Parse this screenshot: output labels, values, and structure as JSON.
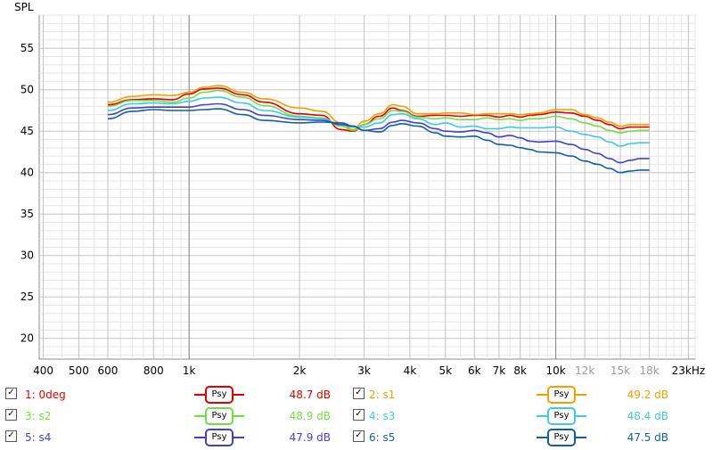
{
  "chart_data": {
    "type": "line",
    "ylabel": "SPL",
    "ylim": [
      17.5,
      59
    ],
    "xlim": [
      390,
      24000
    ],
    "x_scale": "log",
    "grid": true,
    "y_ticks": [
      20,
      25,
      30,
      35,
      40,
      45,
      50,
      55
    ],
    "x_ticks": [
      {
        "v": 400,
        "label": "400",
        "color": "#000000"
      },
      {
        "v": 500,
        "label": "500",
        "color": "#000000"
      },
      {
        "v": 600,
        "label": "600",
        "color": "#000000"
      },
      {
        "v": 800,
        "label": "800",
        "color": "#000000"
      },
      {
        "v": 1000,
        "label": "1k",
        "color": "#000000"
      },
      {
        "v": 2000,
        "label": "2k",
        "color": "#000000"
      },
      {
        "v": 3000,
        "label": "3k",
        "color": "#000000"
      },
      {
        "v": 4000,
        "label": "4k",
        "color": "#000000"
      },
      {
        "v": 5000,
        "label": "5k",
        "color": "#000000"
      },
      {
        "v": 6000,
        "label": "6k",
        "color": "#000000"
      },
      {
        "v": 7000,
        "label": "7k",
        "color": "#000000"
      },
      {
        "v": 8000,
        "label": "8k",
        "color": "#000000"
      },
      {
        "v": 10000,
        "label": "10k",
        "color": "#000000"
      },
      {
        "v": 12000,
        "label": "12k",
        "color": "#999999"
      },
      {
        "v": 15000,
        "label": "15k",
        "color": "#999999"
      },
      {
        "v": 18000,
        "label": "18k",
        "color": "#999999"
      },
      {
        "v": 23000,
        "label": "23kHz",
        "color": "#000000"
      }
    ],
    "series": [
      {
        "name": "1: 0deg",
        "color": "#e00000",
        "x": [
          600,
          700,
          800,
          900,
          1000,
          1100,
          1200,
          1400,
          1600,
          2000,
          2300,
          2600,
          2800,
          3000,
          3300,
          3600,
          3800,
          4200,
          4700,
          5000,
          5500,
          6000,
          6500,
          7000,
          7500,
          8000,
          8500,
          9000,
          10000,
          11000,
          12000,
          13000,
          14000,
          15000,
          16000,
          17000,
          18000
        ],
        "values": [
          48.2,
          48.8,
          48.9,
          48.8,
          49.5,
          50.1,
          50.2,
          49.4,
          48.5,
          47.1,
          46.9,
          45.2,
          45.0,
          45.8,
          46.8,
          47.8,
          47.5,
          46.8,
          46.9,
          46.9,
          46.8,
          46.9,
          46.9,
          46.7,
          46.9,
          46.7,
          46.9,
          47.0,
          47.3,
          47.2,
          46.8,
          46.3,
          45.8,
          45.3,
          45.5,
          45.5,
          45.5
        ]
      },
      {
        "name": "2: s1",
        "color": "#f0a000",
        "x": [
          600,
          700,
          800,
          900,
          1000,
          1100,
          1200,
          1400,
          1600,
          2000,
          2300,
          2600,
          2800,
          3000,
          3300,
          3600,
          3800,
          4200,
          4700,
          5000,
          5500,
          6000,
          6500,
          7000,
          7500,
          8000,
          8500,
          9000,
          10000,
          11000,
          12000,
          13000,
          14000,
          15000,
          16000,
          17000,
          18000
        ],
        "values": [
          48.5,
          49.2,
          49.4,
          49.3,
          49.7,
          50.3,
          50.5,
          49.7,
          48.9,
          47.8,
          47.4,
          46.0,
          45.2,
          46.2,
          47.1,
          48.2,
          48.0,
          47.1,
          47.1,
          47.2,
          47.2,
          47.0,
          47.1,
          47.1,
          47.1,
          47.0,
          47.1,
          47.2,
          47.6,
          47.6,
          47.0,
          46.6,
          46.1,
          45.6,
          45.8,
          45.8,
          45.8
        ]
      },
      {
        "name": "3: s2",
        "color": "#70e040",
        "x": [
          600,
          700,
          800,
          900,
          1000,
          1100,
          1200,
          1400,
          1600,
          2000,
          2300,
          2600,
          2800,
          3000,
          3300,
          3600,
          3800,
          4200,
          4700,
          5000,
          5500,
          6000,
          6500,
          7000,
          7500,
          8000,
          8500,
          9000,
          10000,
          11000,
          12000,
          13000,
          14000,
          15000,
          16000,
          17000,
          18000
        ],
        "values": [
          48.0,
          48.7,
          48.7,
          48.5,
          49.0,
          49.7,
          49.9,
          49.1,
          48.1,
          46.8,
          46.6,
          45.6,
          45.1,
          45.8,
          46.5,
          47.5,
          47.4,
          46.7,
          46.5,
          46.6,
          46.4,
          46.4,
          46.6,
          46.4,
          46.5,
          46.3,
          46.5,
          46.5,
          46.8,
          46.5,
          46.0,
          45.6,
          45.1,
          44.8,
          45.0,
          45.1,
          45.1
        ]
      },
      {
        "name": "4: s3",
        "color": "#40c8e8",
        "x": [
          600,
          700,
          800,
          900,
          1000,
          1100,
          1200,
          1400,
          1600,
          2000,
          2300,
          2600,
          2800,
          3000,
          3300,
          3600,
          3800,
          4200,
          4700,
          5000,
          5500,
          6000,
          6500,
          7000,
          7500,
          8000,
          8500,
          9000,
          10000,
          11000,
          12000,
          13000,
          14000,
          15000,
          16000,
          17000,
          18000
        ],
        "values": [
          47.5,
          48.3,
          48.4,
          48.3,
          48.6,
          49.0,
          49.1,
          48.4,
          47.5,
          46.7,
          46.5,
          45.8,
          45.5,
          45.5,
          46.0,
          47.0,
          47.1,
          46.5,
          45.8,
          46.0,
          45.5,
          45.6,
          45.3,
          45.3,
          45.5,
          45.4,
          45.4,
          45.4,
          45.5,
          45.0,
          44.6,
          44.3,
          43.7,
          43.2,
          43.5,
          43.6,
          43.6
        ]
      },
      {
        "name": "5: s4",
        "color": "#4040d0",
        "x": [
          600,
          700,
          800,
          900,
          1000,
          1100,
          1200,
          1400,
          1600,
          2000,
          2300,
          2600,
          2800,
          3000,
          3300,
          3600,
          3800,
          4200,
          4700,
          5000,
          5500,
          6000,
          6500,
          7000,
          7500,
          8000,
          8500,
          9000,
          10000,
          11000,
          12000,
          13000,
          14000,
          15000,
          16000,
          17000,
          18000
        ],
        "values": [
          47.0,
          47.8,
          47.9,
          47.9,
          47.9,
          48.2,
          48.3,
          47.6,
          46.9,
          46.4,
          46.3,
          45.8,
          45.6,
          45.1,
          45.3,
          46.1,
          46.3,
          46.0,
          45.3,
          45.0,
          44.9,
          45.1,
          44.8,
          44.3,
          44.5,
          44.2,
          43.8,
          43.7,
          43.8,
          43.4,
          42.8,
          42.3,
          41.7,
          41.2,
          41.5,
          41.7,
          41.7
        ]
      },
      {
        "name": "6: s5",
        "color": "#1060a0",
        "x": [
          600,
          700,
          800,
          900,
          1000,
          1100,
          1200,
          1400,
          1600,
          2000,
          2300,
          2600,
          2800,
          3000,
          3300,
          3600,
          3800,
          4200,
          4700,
          5000,
          5500,
          6000,
          6500,
          7000,
          7500,
          8000,
          8500,
          9000,
          10000,
          11000,
          12000,
          13000,
          14000,
          15000,
          16000,
          17000,
          18000
        ],
        "values": [
          46.5,
          47.4,
          47.6,
          47.5,
          47.5,
          47.6,
          47.7,
          47.0,
          46.3,
          46.0,
          46.1,
          46.0,
          45.6,
          45.1,
          44.9,
          45.7,
          45.9,
          45.6,
          44.8,
          44.4,
          44.3,
          44.4,
          43.9,
          43.4,
          43.3,
          43.0,
          42.8,
          42.5,
          42.4,
          42.0,
          41.4,
          41.0,
          40.5,
          40.0,
          40.2,
          40.3,
          40.3
        ]
      }
    ]
  },
  "legend": [
    {
      "checked": "✓",
      "label": "1: 0deg",
      "color": "#e00000",
      "badge": "Psy",
      "value": "48.7 dB"
    },
    {
      "checked": "✓",
      "label": "2: s1",
      "color": "#f0a000",
      "badge": "Psy",
      "value": "49.2 dB"
    },
    {
      "checked": "✓",
      "label": "3: s2",
      "color": "#70e040",
      "badge": "Psy",
      "value": "48.9 dB"
    },
    {
      "checked": "✓",
      "label": "4: s3",
      "color": "#40c8e8",
      "badge": "Psy",
      "value": "48.4 dB"
    },
    {
      "checked": "✓",
      "label": "5: s4",
      "color": "#4040d0",
      "badge": "Psy",
      "value": "47.9 dB"
    },
    {
      "checked": "✓",
      "label": "6: s5",
      "color": "#1060a0",
      "badge": "Psy",
      "value": "47.5 dB"
    }
  ]
}
